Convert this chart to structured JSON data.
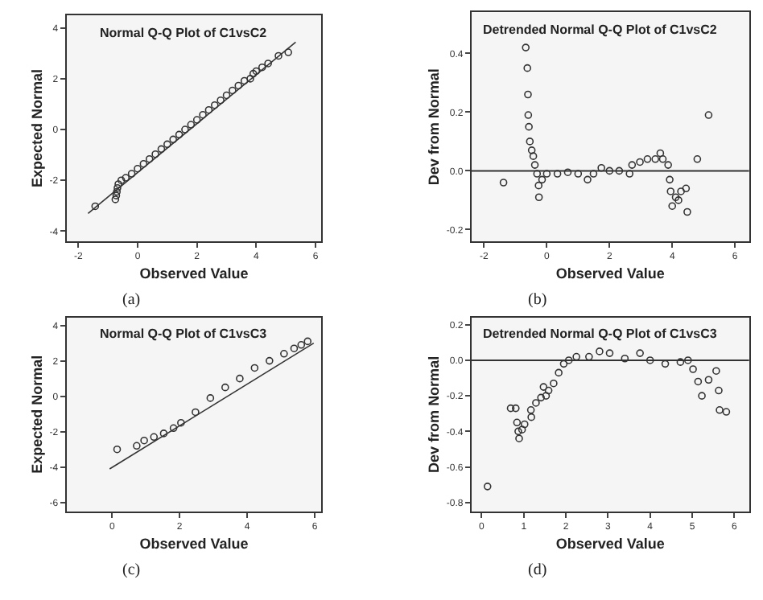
{
  "chart_data": [
    {
      "type": "scatter",
      "title": "Normal Q-Q Plot of C1vsC2",
      "xlabel": "Observed Value",
      "ylabel": "Expected Normal",
      "annotations": [
        "(a)"
      ],
      "xlim": [
        -2.4,
        6.2
      ],
      "ylim": [
        -4.4,
        4.5
      ],
      "xticks": [
        -2,
        0,
        2,
        4,
        6
      ],
      "yticks": [
        -4,
        -2,
        0,
        2,
        4
      ],
      "marker": "circle",
      "grid": false,
      "series": [
        {
          "color": "#333333",
          "x": [
            -1.43,
            -0.75,
            -0.72,
            -0.7,
            -0.68,
            -0.65,
            -0.55,
            -0.4,
            -0.2,
            0,
            0.2,
            0.4,
            0.6,
            0.8,
            1.0,
            1.2,
            1.4,
            1.6,
            1.8,
            2.0,
            2.2,
            2.4,
            2.6,
            2.8,
            3.0,
            3.2,
            3.4,
            3.6,
            3.8,
            3.9,
            4.0,
            4.2,
            4.4,
            4.75,
            5.08
          ],
          "values": [
            -3.02,
            -2.75,
            -2.6,
            -2.45,
            -2.3,
            -2.15,
            -2.0,
            -1.9,
            -1.74,
            -1.54,
            -1.35,
            -1.16,
            -0.97,
            -0.77,
            -0.58,
            -0.39,
            -0.2,
            0.0,
            0.19,
            0.38,
            0.58,
            0.77,
            0.96,
            1.15,
            1.35,
            1.54,
            1.73,
            1.92,
            2.0,
            2.2,
            2.3,
            2.45,
            2.6,
            2.9,
            3.04
          ]
        },
        {
          "type": "line",
          "marker": "none",
          "color": "#333333",
          "x": [
            -1.67,
            5.33
          ],
          "values": [
            -3.3,
            3.44
          ]
        }
      ]
    },
    {
      "type": "scatter",
      "title": "Detrended Normal Q-Q Plot of C1vsC2",
      "xlabel": "Observed Value",
      "ylabel": "Dev from Normal",
      "annotations": [
        "(b)"
      ],
      "xlim": [
        -2.4,
        6.45
      ],
      "ylim": [
        -0.24,
        0.54
      ],
      "xticks": [
        -2,
        0,
        2,
        4,
        6
      ],
      "yticks": [
        -0.2,
        {
          "value": 0,
          "label": "0.0"
        },
        0.2,
        0.4
      ],
      "marker": "circle",
      "grid": false,
      "ref_lines": [
        {
          "axis": "y",
          "value": 0,
          "color": "#333333"
        }
      ],
      "series": [
        {
          "color": "#333333",
          "x": [
            -1.38,
            -0.67,
            -0.62,
            -0.6,
            -0.59,
            -0.57,
            -0.54,
            -0.48,
            -0.43,
            -0.38,
            -0.31,
            -0.26,
            -0.25,
            -0.15,
            0,
            0.34,
            0.67,
            1.0,
            1.3,
            1.49,
            1.74,
            2.0,
            2.31,
            2.64,
            2.72,
            2.97,
            3.21,
            3.46,
            3.62,
            3.7,
            3.87,
            3.92,
            3.95,
            4.0,
            4.11,
            4.2,
            4.28,
            4.44,
            4.48,
            4.8,
            5.16
          ],
          "values": [
            -0.04,
            0.42,
            0.35,
            0.26,
            0.19,
            0.15,
            0.1,
            0.07,
            0.05,
            0.02,
            -0.01,
            -0.05,
            -0.09,
            -0.03,
            -0.01,
            -0.01,
            -0.005,
            -0.01,
            -0.03,
            -0.01,
            0.01,
            0.0,
            0.0,
            -0.01,
            0.02,
            0.03,
            0.04,
            0.04,
            0.06,
            0.04,
            0.02,
            -0.03,
            -0.07,
            -0.12,
            -0.09,
            -0.1,
            -0.07,
            -0.06,
            -0.14,
            0.04,
            0.19
          ]
        }
      ]
    },
    {
      "type": "scatter",
      "title": "Normal Q-Q Plot of C1vsC3",
      "xlabel": "Observed Value",
      "ylabel": "Expected Normal",
      "annotations": [
        "(c)"
      ],
      "xlim": [
        -1.35,
        6.2
      ],
      "ylim": [
        -6.5,
        4.44
      ],
      "xticks": [
        0,
        2,
        4,
        6
      ],
      "yticks": [
        -6,
        -4,
        -2,
        0,
        2,
        4
      ],
      "marker": "circle",
      "grid": false,
      "series": [
        {
          "color": "#333333",
          "x": [
            0.15,
            0.73,
            0.95,
            1.24,
            1.53,
            1.82,
            2.04,
            2.47,
            2.91,
            3.35,
            3.78,
            4.22,
            4.66,
            5.09,
            5.39,
            5.6,
            5.79
          ],
          "values": [
            -3.0,
            -2.8,
            -2.5,
            -2.3,
            -2.1,
            -1.8,
            -1.5,
            -0.9,
            -0.1,
            0.5,
            1.0,
            1.6,
            2.0,
            2.4,
            2.7,
            2.9,
            3.1
          ]
        },
        {
          "type": "line",
          "marker": "none",
          "color": "#333333",
          "x": [
            -0.07,
            5.97
          ],
          "values": [
            -4.1,
            3.0
          ]
        }
      ]
    },
    {
      "type": "scatter",
      "title": "Detrended Normal Q-Q Plot of C1vsC3",
      "xlabel": "Observed Value",
      "ylabel": "Dev from Normal",
      "annotations": [
        "(d)"
      ],
      "xlim": [
        -0.24,
        6.35
      ],
      "ylim": [
        -0.85,
        0.24
      ],
      "xticks": [
        0,
        1,
        2,
        3,
        4,
        5,
        6
      ],
      "yticks": [
        -0.8,
        -0.6,
        -0.4,
        -0.2,
        {
          "value": 0,
          "label": "0.0"
        },
        0.2
      ],
      "marker": "circle",
      "grid": false,
      "ref_lines": [
        {
          "axis": "y",
          "value": 0,
          "color": "#333333"
        }
      ],
      "series": [
        {
          "color": "#333333",
          "x": [
            0.14,
            0.69,
            0.81,
            0.84,
            0.87,
            0.89,
            0.96,
            1.02,
            1.17,
            1.18,
            1.29,
            1.41,
            1.47,
            1.53,
            1.59,
            1.71,
            1.83,
            1.95,
            2.07,
            2.25,
            2.55,
            2.8,
            3.04,
            3.4,
            3.76,
            4.0,
            4.36,
            4.72,
            4.9,
            5.02,
            5.14,
            5.23,
            5.39,
            5.57,
            5.63,
            5.65,
            5.81
          ],
          "values": [
            -0.71,
            -0.27,
            -0.27,
            -0.35,
            -0.4,
            -0.44,
            -0.39,
            -0.36,
            -0.28,
            -0.32,
            -0.24,
            -0.21,
            -0.15,
            -0.2,
            -0.17,
            -0.13,
            -0.07,
            -0.02,
            0,
            0.02,
            0.02,
            0.05,
            0.04,
            0.01,
            0.04,
            0,
            -0.02,
            -0.01,
            0,
            -0.05,
            -0.12,
            -0.2,
            -0.11,
            -0.06,
            -0.17,
            -0.28,
            -0.29
          ]
        }
      ]
    }
  ]
}
